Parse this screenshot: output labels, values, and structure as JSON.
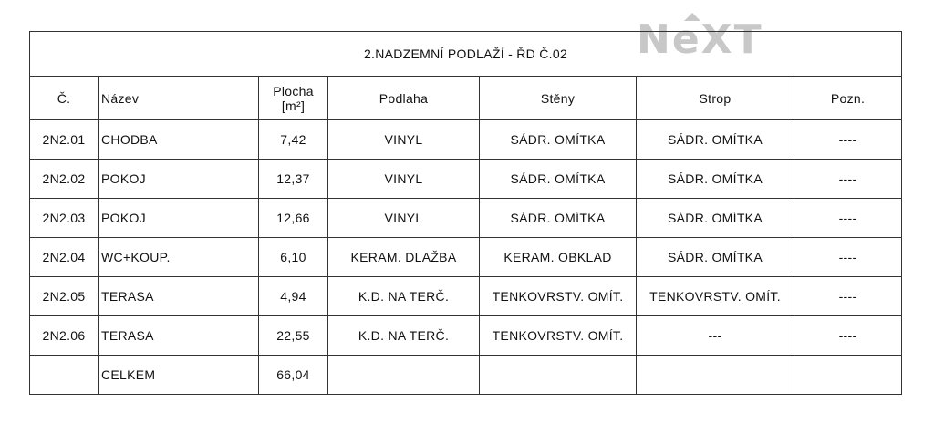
{
  "logo": {
    "text": "NEXT"
  },
  "table": {
    "title": "2.NADZEMNÍ PODLAŽÍ - ŘD Č.02",
    "headers": {
      "cislo": "Č.",
      "nazev": "Název",
      "plocha": "Plocha",
      "plocha_unit": "[m²]",
      "podlaha": "Podlaha",
      "steny": "Stěny",
      "strop": "Strop",
      "pozn": "Pozn."
    },
    "rows": [
      {
        "cislo": "2N2.01",
        "nazev": "CHODBA",
        "plocha": "7,42",
        "podlaha": "VINYL",
        "steny": "SÁDR. OMÍTKA",
        "strop": "SÁDR. OMÍTKA",
        "pozn": "----"
      },
      {
        "cislo": "2N2.02",
        "nazev": "POKOJ",
        "plocha": "12,37",
        "podlaha": "VINYL",
        "steny": "SÁDR. OMÍTKA",
        "strop": "SÁDR. OMÍTKA",
        "pozn": "----"
      },
      {
        "cislo": "2N2.03",
        "nazev": "POKOJ",
        "plocha": "12,66",
        "podlaha": "VINYL",
        "steny": "SÁDR. OMÍTKA",
        "strop": "SÁDR. OMÍTKA",
        "pozn": "----"
      },
      {
        "cislo": "2N2.04",
        "nazev": "WC+KOUP.",
        "plocha": "6,10",
        "podlaha": "KERAM. DLAŽBA",
        "steny": "KERAM. OBKLAD",
        "strop": "SÁDR. OMÍTKA",
        "pozn": "----"
      },
      {
        "cislo": "2N2.05",
        "nazev": "TERASA",
        "plocha": "4,94",
        "podlaha": "K.D. NA TERČ.",
        "steny": "TENKOVRSTV. OMÍT.",
        "strop": "TENKOVRSTV. OMÍT.",
        "pozn": "----"
      },
      {
        "cislo": "2N2.06",
        "nazev": "TERASA",
        "plocha": "22,55",
        "podlaha": "K.D. NA TERČ.",
        "steny": "TENKOVRSTV. OMÍT.",
        "strop": "---",
        "pozn": "----"
      }
    ],
    "total": {
      "label": "CELKEM",
      "plocha": "66,04"
    }
  }
}
